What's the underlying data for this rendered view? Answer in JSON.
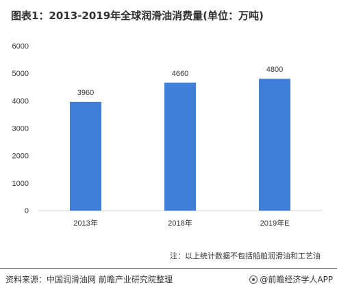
{
  "title": "图表1：2013-2019年全球润滑油消费量(单位：万吨)",
  "note": "注：以上统计数据不包括船舶润滑油和工艺油",
  "source": "资料来源：中国润滑油网 前瞻产业研究院整理",
  "credit": "@前瞻经济学人APP",
  "colors": {
    "bar": "#3f7fd9",
    "axis": "#d0d0d0",
    "text": "#333333"
  },
  "chart_data": {
    "type": "bar",
    "categories": [
      "2013年",
      "2018年",
      "2019年E"
    ],
    "values": [
      3960,
      4660,
      4800
    ],
    "data_labels": [
      "3960",
      "4660",
      "4800"
    ],
    "yticks": [
      "0",
      "1000",
      "2000",
      "3000",
      "4000",
      "5000",
      "6000"
    ],
    "ylim": [
      0,
      6000
    ],
    "grid": false,
    "legend": "none"
  }
}
